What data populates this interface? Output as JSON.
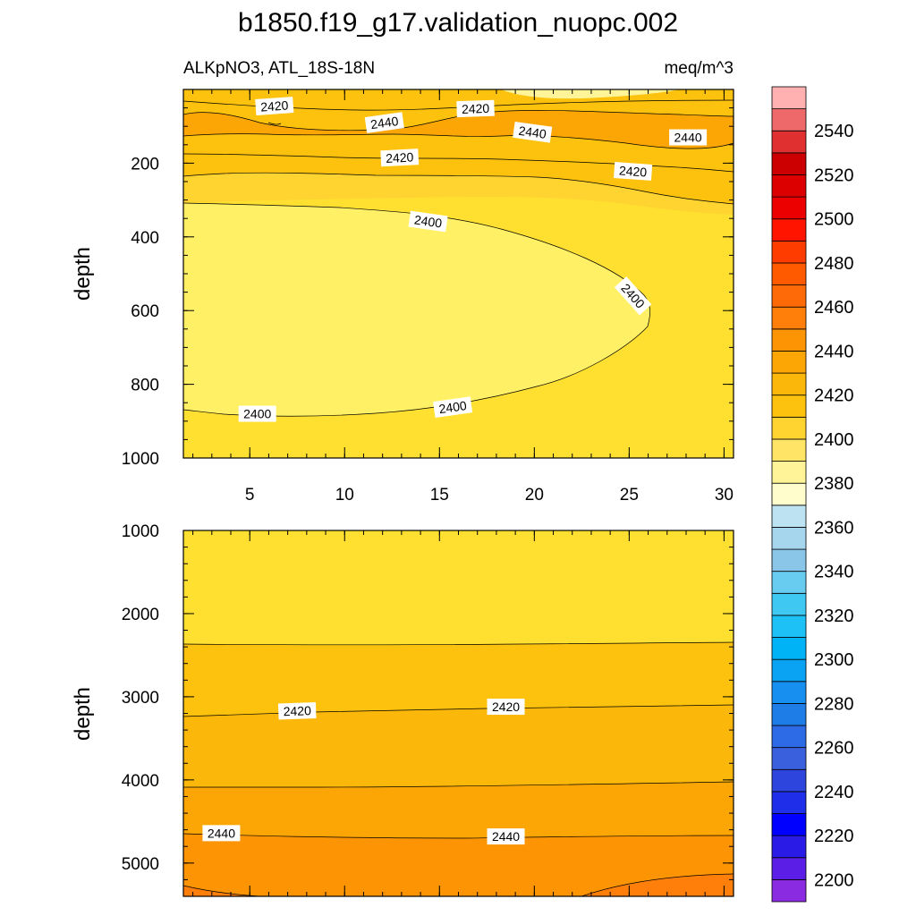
{
  "chart_data": {
    "type": "contour",
    "title": "b1850.f19_g17.validation_nuopc.002",
    "variable_label": "ALKpNO3, ATL_18S-18N",
    "units_label": "meq/m^3",
    "top_panel": {
      "ylabel": "depth",
      "ylim": [
        1000,
        0
      ],
      "xlim": [
        1.5,
        30.5
      ],
      "x_ticks": [
        "5",
        "10",
        "15",
        "20",
        "25",
        "30"
      ],
      "x_tick_values": [
        5,
        10,
        15,
        20,
        25,
        30
      ],
      "y_ticks": [
        "200",
        "400",
        "600",
        "800",
        "1000"
      ],
      "y_tick_values": [
        200,
        400,
        600,
        800,
        1000
      ],
      "contour_labels": [
        {
          "text": "2420",
          "x": 6.3,
          "y": 45,
          "angle": -4
        },
        {
          "text": "2420",
          "x": 16.9,
          "y": 52,
          "angle": -2
        },
        {
          "text": "2440",
          "x": 12.1,
          "y": 90,
          "angle": -8
        },
        {
          "text": "2440",
          "x": 19.9,
          "y": 116,
          "angle": 8
        },
        {
          "text": "2440",
          "x": 28.1,
          "y": 130,
          "angle": 0
        },
        {
          "text": "2420",
          "x": 12.9,
          "y": 185,
          "angle": -3
        },
        {
          "text": "2420",
          "x": 25.2,
          "y": 222,
          "angle": 4
        },
        {
          "text": "2400",
          "x": 14.4,
          "y": 358,
          "angle": 8
        },
        {
          "text": "2400",
          "x": 25.2,
          "y": 560,
          "angle": 48
        },
        {
          "text": "2400",
          "x": 5.4,
          "y": 880,
          "angle": 0
        },
        {
          "text": "2400",
          "x": 15.7,
          "y": 862,
          "angle": -8
        }
      ]
    },
    "bottom_panel": {
      "ylabel": "depth",
      "ylim": [
        5400,
        1000
      ],
      "xlim": [
        1.5,
        30.5
      ],
      "y_ticks": [
        "1000",
        "2000",
        "3000",
        "4000",
        "5000"
      ],
      "y_tick_values": [
        1000,
        2000,
        3000,
        4000,
        5000
      ],
      "contour_labels": [
        {
          "text": "2420",
          "x": 7.5,
          "y": 3170,
          "angle": -2
        },
        {
          "text": "2420",
          "x": 18.5,
          "y": 3120,
          "angle": 0
        },
        {
          "text": "2440",
          "x": 3.5,
          "y": 4640,
          "angle": 0
        },
        {
          "text": "2440",
          "x": 18.5,
          "y": 4680,
          "angle": 0
        }
      ]
    },
    "colorbar": {
      "colors": [
        "#8a2be2",
        "#5a1ee6",
        "#2b1be6",
        "#0000ff",
        "#1f2ee8",
        "#2e45dd",
        "#3b60dd",
        "#2d6ae6",
        "#1f7de8",
        "#168ff0",
        "#0aa2f2",
        "#00b2f6",
        "#1dc1f6",
        "#3ec8f2",
        "#67ccef",
        "#8ac6e8",
        "#a6d5ee",
        "#bde2f2",
        "#fffdcc",
        "#fff598",
        "#ffe466",
        "#ffd330",
        "#fcc20e",
        "#fbb80a",
        "#fca606",
        "#fc9404",
        "#ff7f0a",
        "#ff6a08",
        "#ff5a00",
        "#ff3c00",
        "#ff1400",
        "#ec0000",
        "#dc0000",
        "#cc0000",
        "#e03030",
        "#ee6a6a",
        "#ffb0b0"
      ],
      "labels": [
        "2200",
        "2220",
        "2240",
        "2260",
        "2280",
        "2300",
        "2320",
        "2340",
        "2360",
        "2380",
        "2400",
        "2420",
        "2440",
        "2460",
        "2480",
        "2500",
        "2520",
        "2540"
      ],
      "label_values": [
        2200,
        2220,
        2240,
        2260,
        2280,
        2300,
        2320,
        2340,
        2360,
        2380,
        2400,
        2420,
        2440,
        2460,
        2480,
        2500,
        2520,
        2540
      ]
    }
  }
}
